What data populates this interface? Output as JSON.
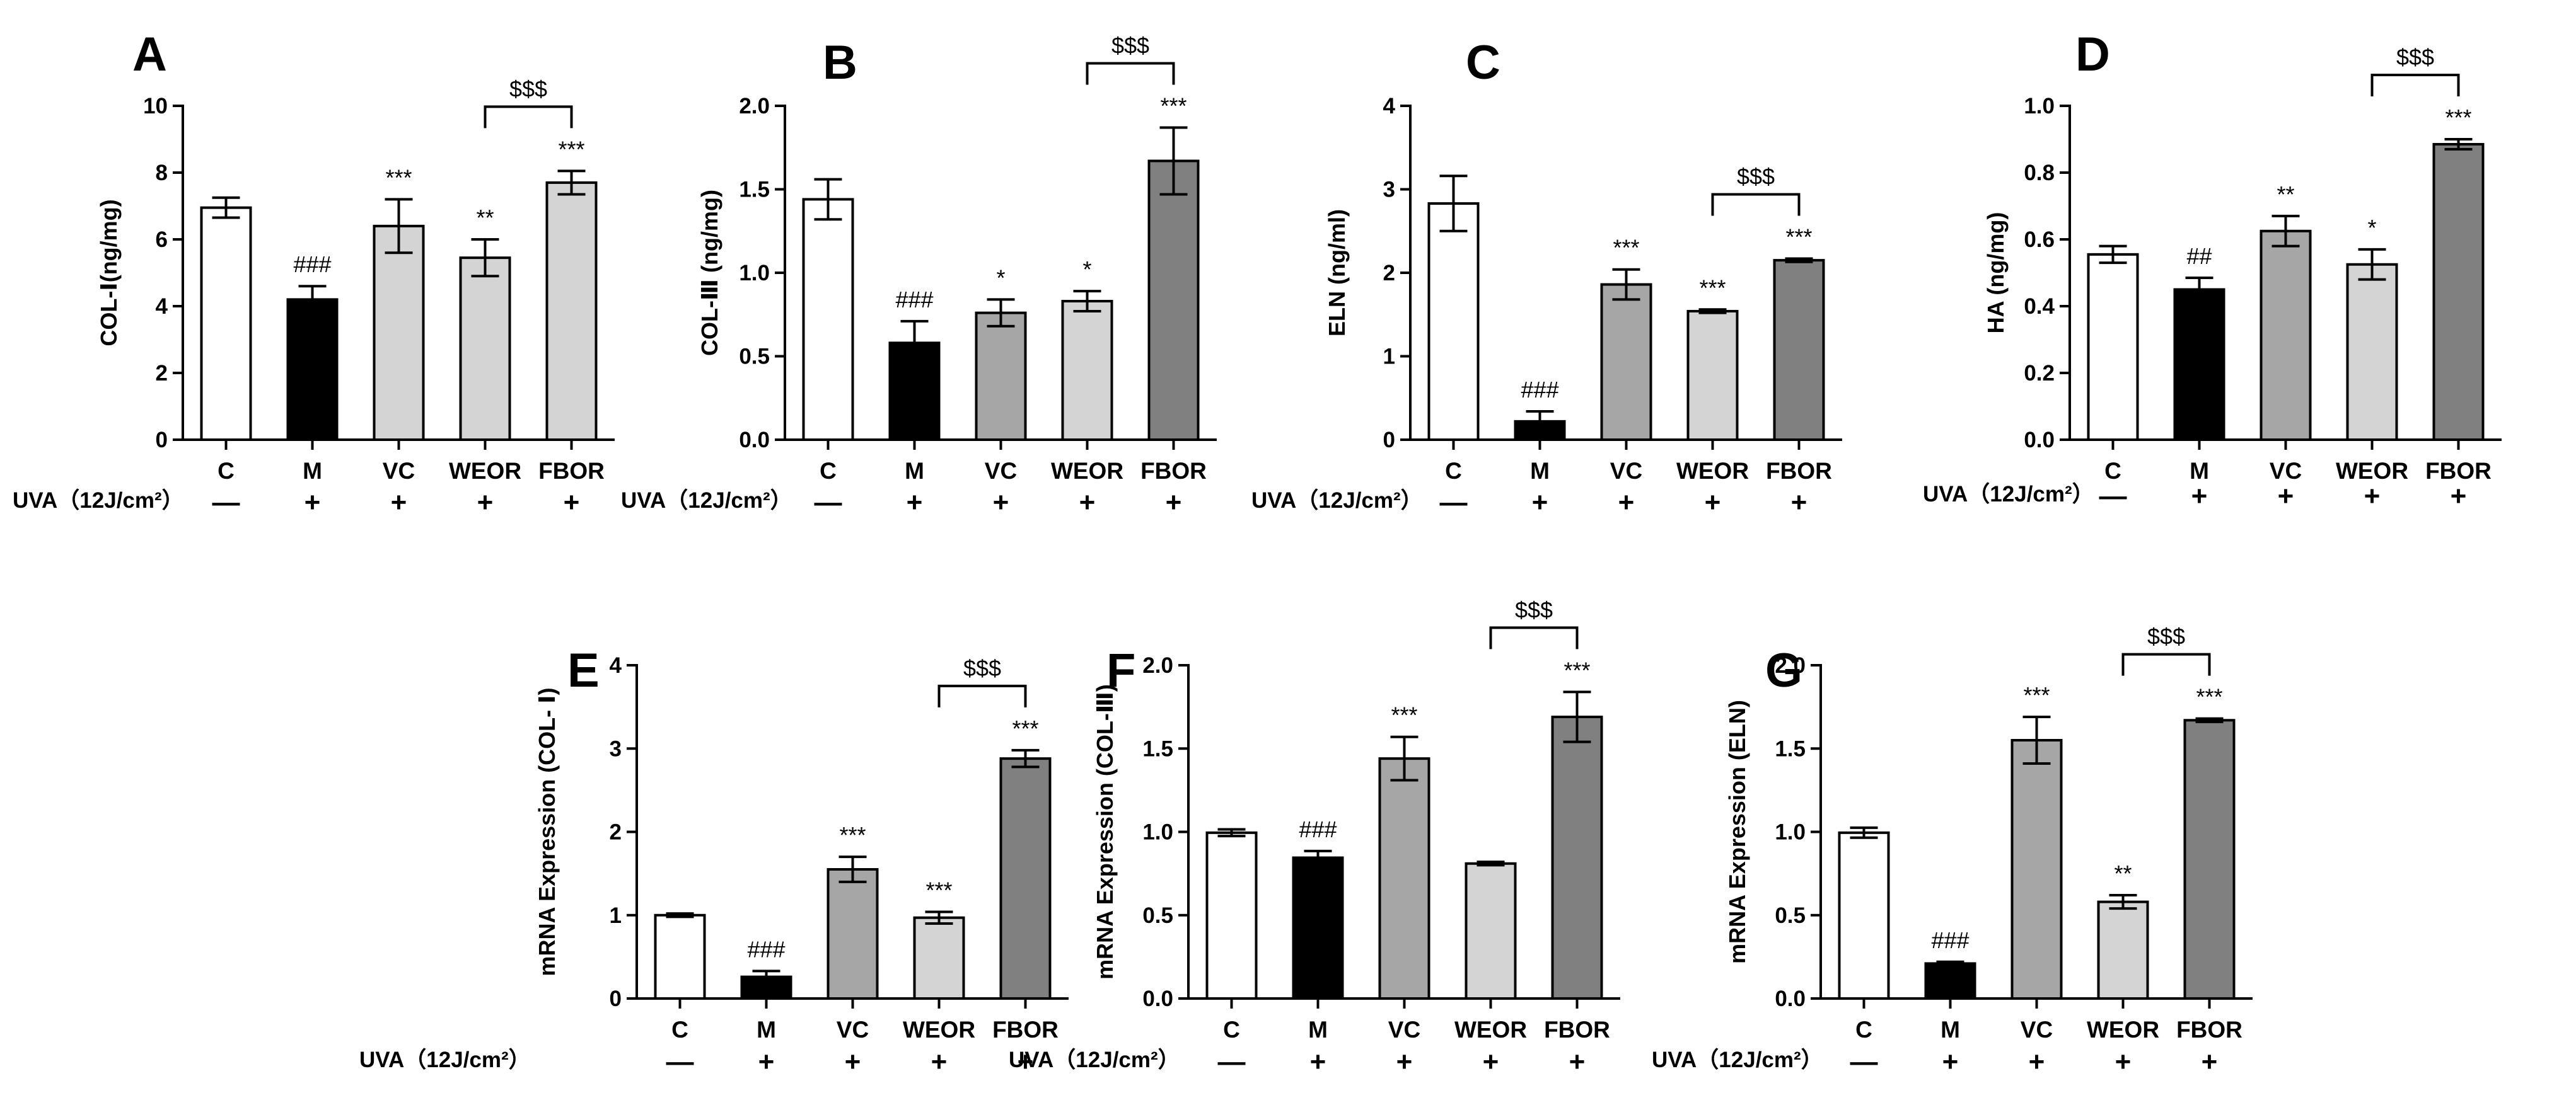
{
  "chart_data": [
    {
      "panel": "A",
      "type": "bar",
      "ylabel": "COL-Ⅰ(ng/mg)",
      "categories": [
        "C",
        "M",
        "VC",
        "WEOR",
        "FBOR"
      ],
      "values": [
        6.95,
        4.2,
        6.4,
        5.45,
        7.7
      ],
      "errors": [
        0.3,
        0.4,
        0.8,
        0.55,
        0.35
      ],
      "colors": [
        "#ffffff",
        "#000000",
        "#d4d4d4",
        "#d4d4d4",
        "#d4d4d4"
      ],
      "annotations": [
        "",
        "###",
        "***",
        "**",
        "***"
      ],
      "bracket": {
        "from": 3,
        "to": 4,
        "label": "$$$"
      },
      "ylim": [
        0,
        10
      ],
      "yticks": [
        "0",
        "2",
        "4",
        "6",
        "8",
        "10"
      ],
      "uva_label": "UVA（12J/cm²）",
      "uva_signs": [
        "—",
        "+",
        "+",
        "+",
        "+"
      ]
    },
    {
      "panel": "B",
      "type": "bar",
      "ylabel": "COL-Ⅲ (ng/mg)",
      "categories": [
        "C",
        "M",
        "VC",
        "WEOR",
        "FBOR"
      ],
      "values": [
        1.44,
        0.58,
        0.76,
        0.83,
        1.67
      ],
      "errors": [
        0.12,
        0.13,
        0.08,
        0.06,
        0.2
      ],
      "colors": [
        "#ffffff",
        "#000000",
        "#a6a6a6",
        "#d4d4d4",
        "#808080"
      ],
      "annotations": [
        "",
        "###",
        "*",
        "*",
        "***"
      ],
      "bracket": {
        "from": 3,
        "to": 4,
        "label": "$$$"
      },
      "ylim": [
        0,
        2.0
      ],
      "yticks": [
        "0.0",
        "0.5",
        "1.0",
        "1.5",
        "2.0"
      ],
      "uva_label": "UVA（12J/cm²）",
      "uva_signs": [
        "—",
        "+",
        "+",
        "+",
        "+"
      ]
    },
    {
      "panel": "C",
      "type": "bar",
      "ylabel": "ELN (ng/ml)",
      "categories": [
        "C",
        "M",
        "VC",
        "WEOR",
        "FBOR"
      ],
      "values": [
        2.83,
        0.22,
        1.86,
        1.54,
        2.15
      ],
      "errors": [
        0.33,
        0.12,
        0.18,
        0.02,
        0.02
      ],
      "colors": [
        "#ffffff",
        "#000000",
        "#a6a6a6",
        "#d4d4d4",
        "#808080"
      ],
      "annotations": [
        "",
        "###",
        "***",
        "***",
        "***"
      ],
      "bracket": {
        "from": 3,
        "to": 4,
        "label": "$$$"
      },
      "ylim": [
        0,
        4
      ],
      "yticks": [
        "0",
        "1",
        "2",
        "3",
        "4"
      ],
      "uva_label": "UVA（12J/cm²）",
      "uva_signs": [
        "—",
        "+",
        "+",
        "+",
        "+"
      ]
    },
    {
      "panel": "D",
      "type": "bar",
      "ylabel": "HA (ng/mg)",
      "categories": [
        "C",
        "M",
        "VC",
        "WEOR",
        "FBOR"
      ],
      "values": [
        0.555,
        0.45,
        0.625,
        0.525,
        0.885
      ],
      "errors": [
        0.025,
        0.035,
        0.045,
        0.045,
        0.015
      ],
      "colors": [
        "#ffffff",
        "#000000",
        "#a6a6a6",
        "#d4d4d4",
        "#808080"
      ],
      "annotations": [
        "",
        "##",
        "**",
        "*",
        "***"
      ],
      "bracket": {
        "from": 3,
        "to": 4,
        "label": "$$$"
      },
      "ylim": [
        0,
        1.0
      ],
      "yticks": [
        "0.0",
        "0.2",
        "0.4",
        "0.6",
        "0.8",
        "1.0"
      ],
      "uva_label": "UVA（12J/cm²）",
      "uva_signs": [
        "—",
        "+",
        "+",
        "+",
        "+"
      ]
    },
    {
      "panel": "E",
      "type": "bar",
      "ylabel": "mRNA Expression (COL- Ⅰ)",
      "categories": [
        "C",
        "M",
        "VC",
        "WEOR",
        "FBOR"
      ],
      "values": [
        1.0,
        0.26,
        1.55,
        0.97,
        2.88
      ],
      "errors": [
        0.02,
        0.07,
        0.15,
        0.07,
        0.1
      ],
      "colors": [
        "#ffffff",
        "#000000",
        "#a6a6a6",
        "#d4d4d4",
        "#808080"
      ],
      "annotations": [
        "",
        "###",
        "***",
        "***",
        "***"
      ],
      "bracket": {
        "from": 3,
        "to": 4,
        "label": "$$$"
      },
      "ylim": [
        0,
        4
      ],
      "yticks": [
        "0",
        "1",
        "2",
        "3",
        "4"
      ],
      "uva_label": "UVA（12J/cm²）",
      "uva_signs": [
        "—",
        "+",
        "+",
        "+",
        "+"
      ]
    },
    {
      "panel": "F",
      "type": "bar",
      "ylabel": "mRNA Expression (COL-Ⅲ)",
      "categories": [
        "C",
        "M",
        "VC",
        "WEOR",
        "FBOR"
      ],
      "values": [
        0.995,
        0.845,
        1.44,
        0.81,
        1.69
      ],
      "errors": [
        0.02,
        0.04,
        0.13,
        0.01,
        0.15
      ],
      "colors": [
        "#ffffff",
        "#000000",
        "#a6a6a6",
        "#d4d4d4",
        "#808080"
      ],
      "annotations": [
        "",
        "###",
        "***",
        "",
        "***"
      ],
      "bracket": {
        "from": 3,
        "to": 4,
        "label": "$$$"
      },
      "ylim": [
        0,
        2.0
      ],
      "yticks": [
        "0.0",
        "0.5",
        "1.0",
        "1.5",
        "2.0"
      ],
      "uva_label": "UVA（12J/cm²）",
      "uva_signs": [
        "—",
        "+",
        "+",
        "+",
        "+"
      ]
    },
    {
      "panel": "G",
      "type": "bar",
      "ylabel": "mRNA Expression (ELN)",
      "categories": [
        "C",
        "M",
        "VC",
        "WEOR",
        "FBOR"
      ],
      "values": [
        0.995,
        0.21,
        1.55,
        0.58,
        1.67
      ],
      "errors": [
        0.03,
        0.01,
        0.14,
        0.04,
        0.01
      ],
      "colors": [
        "#ffffff",
        "#000000",
        "#a6a6a6",
        "#d4d4d4",
        "#808080"
      ],
      "annotations": [
        "",
        "###",
        "***",
        "**",
        "***"
      ],
      "bracket": {
        "from": 3,
        "to": 4,
        "label": "$$$"
      },
      "ylim": [
        0,
        2.0
      ],
      "yticks": [
        "0.0",
        "0.5",
        "1.0",
        "1.5",
        "2.0"
      ],
      "uva_label": "UVA（12J/cm²）",
      "uva_signs": [
        "—",
        "+",
        "+",
        "+",
        "+"
      ]
    }
  ]
}
